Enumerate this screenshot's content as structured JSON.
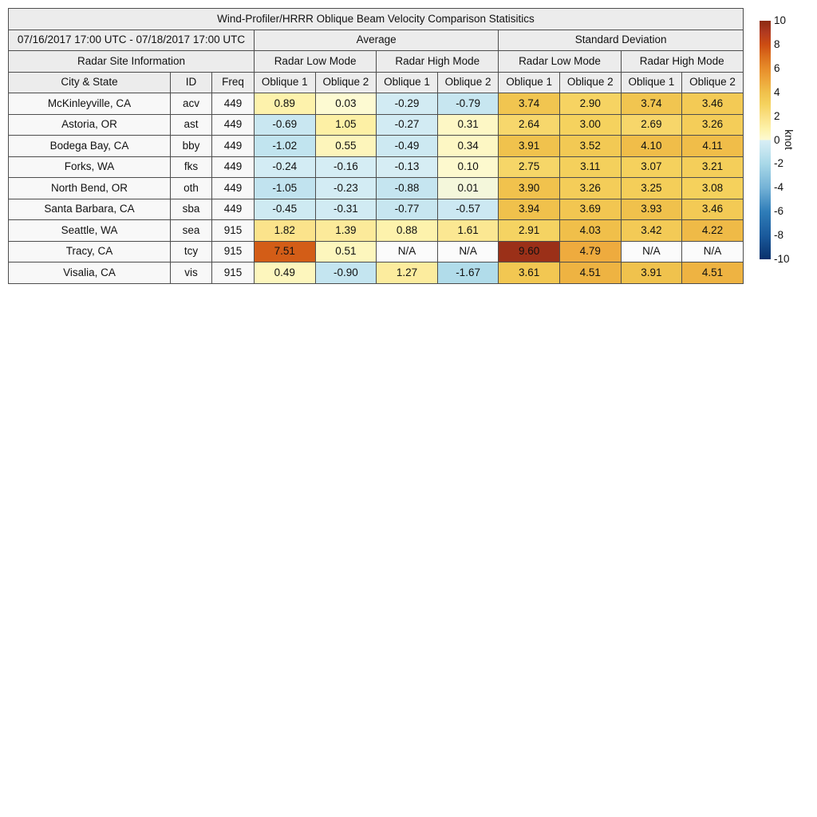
{
  "title": "Wind-Profiler/HRRR Oblique Beam Velocity Comparison Statisitics",
  "date_range": "07/16/2017 17:00 UTC - 07/18/2017 17:00 UTC",
  "group_headers": {
    "average": "Average",
    "std_dev": "Standard Deviation",
    "site_info": "Radar Site Information"
  },
  "mode_headers": [
    "Radar Low Mode",
    "Radar High Mode",
    "Radar Low Mode",
    "Radar High Mode"
  ],
  "column_headers": {
    "city": "City & State",
    "id": "ID",
    "freq": "Freq",
    "obliques": [
      "Oblique 1",
      "Oblique 2",
      "Oblique 1",
      "Oblique 2",
      "Oblique 1",
      "Oblique 2",
      "Oblique 1",
      "Oblique 2"
    ]
  },
  "na_label": "N/A",
  "chart_data": {
    "type": "heatmap",
    "title": "Wind-Profiler/HRRR Oblique Beam Velocity Comparison Statisitics",
    "value_columns": [
      "Average Radar Low Mode Oblique 1",
      "Average Radar Low Mode Oblique 2",
      "Average Radar High Mode Oblique 1",
      "Average Radar High Mode Oblique 2",
      "StdDev Radar Low Mode Oblique 1",
      "StdDev Radar Low Mode Oblique 2",
      "StdDev Radar High Mode Oblique 1",
      "StdDev Radar High Mode Oblique 2"
    ],
    "rows": [
      {
        "city": "McKinleyville, CA",
        "id": "acv",
        "freq": "449",
        "cells": [
          "0.89",
          "0.03",
          "-0.29",
          "-0.79",
          "3.74",
          "2.90",
          "3.74",
          "3.46"
        ]
      },
      {
        "city": "Astoria, OR",
        "id": "ast",
        "freq": "449",
        "cells": [
          "-0.69",
          "1.05",
          "-0.27",
          "0.31",
          "2.64",
          "3.00",
          "2.69",
          "3.26"
        ]
      },
      {
        "city": "Bodega Bay, CA",
        "id": "bby",
        "freq": "449",
        "cells": [
          "-1.02",
          "0.55",
          "-0.49",
          "0.34",
          "3.91",
          "3.52",
          "4.10",
          "4.11"
        ]
      },
      {
        "city": "Forks, WA",
        "id": "fks",
        "freq": "449",
        "cells": [
          "-0.24",
          "-0.16",
          "-0.13",
          "0.10",
          "2.75",
          "3.11",
          "3.07",
          "3.21"
        ]
      },
      {
        "city": "North Bend, OR",
        "id": "oth",
        "freq": "449",
        "cells": [
          "-1.05",
          "-0.23",
          "-0.88",
          "0.01",
          "3.90",
          "3.26",
          "3.25",
          "3.08"
        ]
      },
      {
        "city": "Santa Barbara, CA",
        "id": "sba",
        "freq": "449",
        "cells": [
          "-0.45",
          "-0.31",
          "-0.77",
          "-0.57",
          "3.94",
          "3.69",
          "3.93",
          "3.46"
        ]
      },
      {
        "city": "Seattle, WA",
        "id": "sea",
        "freq": "915",
        "cells": [
          "1.82",
          "1.39",
          "0.88",
          "1.61",
          "2.91",
          "4.03",
          "3.42",
          "4.22"
        ]
      },
      {
        "city": "Tracy, CA",
        "id": "tcy",
        "freq": "915",
        "cells": [
          "7.51",
          "0.51",
          "N/A",
          "N/A",
          "9.60",
          "4.79",
          "N/A",
          "N/A"
        ]
      },
      {
        "city": "Visalia, CA",
        "id": "vis",
        "freq": "915",
        "cells": [
          "0.49",
          "-0.90",
          "1.27",
          "-1.67",
          "3.61",
          "4.51",
          "3.91",
          "4.51"
        ]
      }
    ]
  },
  "colorbar": {
    "unit": "knot",
    "min": -10,
    "max": 10,
    "ticks": [
      "10",
      "8",
      "6",
      "4",
      "2",
      "0",
      "-2",
      "-4",
      "-6",
      "-8",
      "-10"
    ],
    "colormap_stops": [
      {
        "v": -10,
        "c": "#08306b"
      },
      {
        "v": -8,
        "c": "#1a5a9c"
      },
      {
        "v": -6,
        "c": "#2f7db8"
      },
      {
        "v": -4,
        "c": "#74b2d6"
      },
      {
        "v": -2,
        "c": "#a8d8e8"
      },
      {
        "v": -1,
        "c": "#c2e4ef"
      },
      {
        "v": -0.02,
        "c": "#d8eef5"
      },
      {
        "v": 0.02,
        "c": "#fdfad2"
      },
      {
        "v": 1,
        "c": "#fdf1a7"
      },
      {
        "v": 2,
        "c": "#fae085"
      },
      {
        "v": 3,
        "c": "#f5d25e"
      },
      {
        "v": 4,
        "c": "#f0c04b"
      },
      {
        "v": 5,
        "c": "#eda63a"
      },
      {
        "v": 6,
        "c": "#e78c2a"
      },
      {
        "v": 7,
        "c": "#db6f1d"
      },
      {
        "v": 8,
        "c": "#cc4c12"
      },
      {
        "v": 9,
        "c": "#b23a20"
      },
      {
        "v": 10,
        "c": "#8c2a12"
      }
    ]
  }
}
